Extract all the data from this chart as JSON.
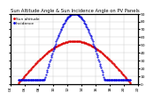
{
  "title": "Sun Altitude Angle & Sun Incidence Angle on PV Panels",
  "legend_labels": [
    "Sun altitude",
    "Incidence"
  ],
  "blue_color": "#0000dd",
  "red_color": "#dd0000",
  "background_color": "#ffffff",
  "grid_color": "#bbbbbb",
  "x_start": 4.0,
  "x_end": 22.0,
  "y_min": 0,
  "y_max": 90,
  "noon": 13.0,
  "alt_max": 55.0,
  "inc_min": 5.0,
  "inc_max": 90.0,
  "sunrise": 5.0,
  "sunset": 21.0,
  "title_fontsize": 3.8,
  "legend_fontsize": 3.2,
  "tick_fontsize": 3.2,
  "marker_size": 1.0,
  "y_ticks": [
    0,
    10,
    20,
    30,
    40,
    50,
    60,
    70,
    80,
    90
  ],
  "x_ticks": [
    4,
    6,
    8,
    10,
    12,
    14,
    16,
    18,
    20,
    22
  ]
}
